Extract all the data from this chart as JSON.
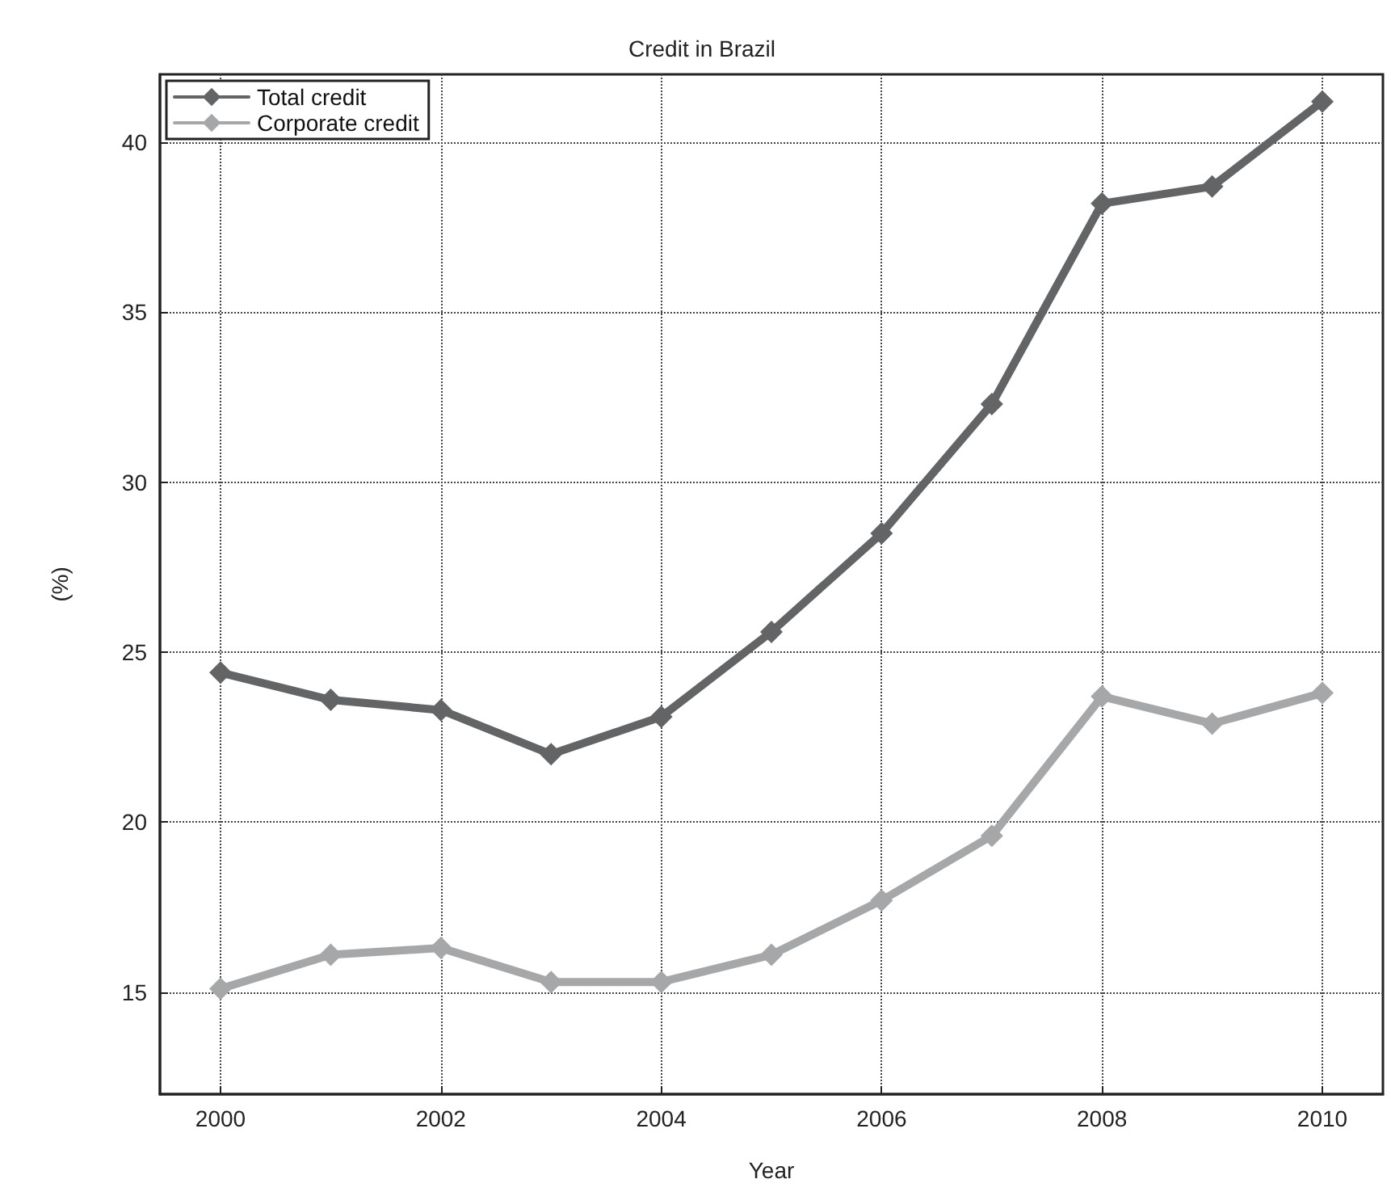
{
  "chart_data": {
    "type": "line",
    "title": "Credit in Brazil",
    "xlabel": "Year",
    "ylabel": "(%)",
    "x": [
      2000,
      2001,
      2002,
      2003,
      2004,
      2005,
      2006,
      2007,
      2008,
      2009,
      2010
    ],
    "series": [
      {
        "name": "Total credit",
        "color": "#636466",
        "values": [
          24.4,
          23.6,
          23.3,
          22.0,
          23.1,
          25.6,
          28.5,
          32.3,
          38.2,
          38.7,
          41.2
        ]
      },
      {
        "name": "Corporate credit",
        "color": "#a6a7a9",
        "values": [
          15.1,
          16.1,
          16.3,
          15.3,
          15.3,
          16.1,
          17.7,
          19.6,
          23.7,
          22.9,
          23.8
        ]
      }
    ],
    "xlim": [
      1999.45,
      2010.55
    ],
    "xticks": [
      2000,
      2002,
      2004,
      2006,
      2008,
      2010
    ],
    "ylim": [
      12,
      42
    ],
    "yticks": [
      15,
      20,
      25,
      30,
      35,
      40
    ],
    "grid": true,
    "legend": "top left",
    "marker": "diamond",
    "line_style": "solid"
  }
}
